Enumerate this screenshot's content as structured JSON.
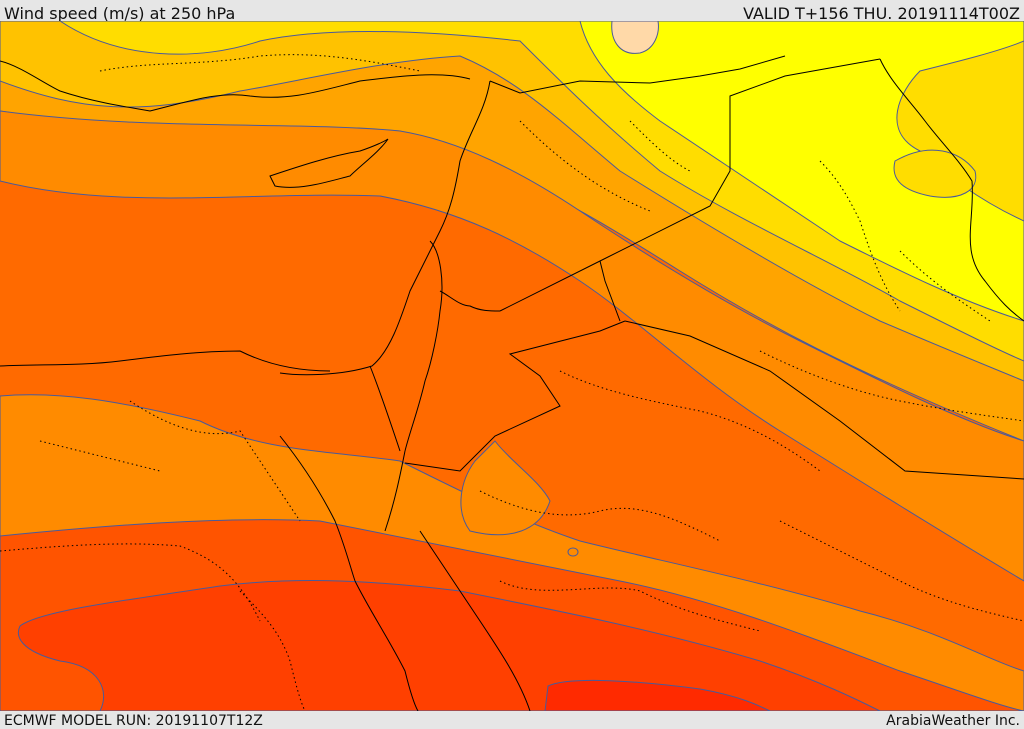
{
  "header": {
    "title": "Wind speed (m/s) at 250 hPa",
    "valid": "VALID T+156 THU. 20191114T00Z"
  },
  "footer": {
    "model_run": "ECMWF MODEL RUN: 20191107T12Z",
    "provider": "ArabiaWeather Inc."
  },
  "palette": {
    "band_lightest": "#ffd9a8",
    "band_yellow": "#ffff00",
    "band_gold": "#ffdd00",
    "band_amber": "#ffc200",
    "band_orange_light": "#ffa400",
    "band_orange": "#ff8b00",
    "band_orange_dark": "#ff6a00",
    "band_red_orange": "#ff5400",
    "band_red": "#ff4000",
    "band_deep_red": "#ff2a00",
    "contour_line": "#4a5a9a",
    "border_line": "#000000"
  }
}
